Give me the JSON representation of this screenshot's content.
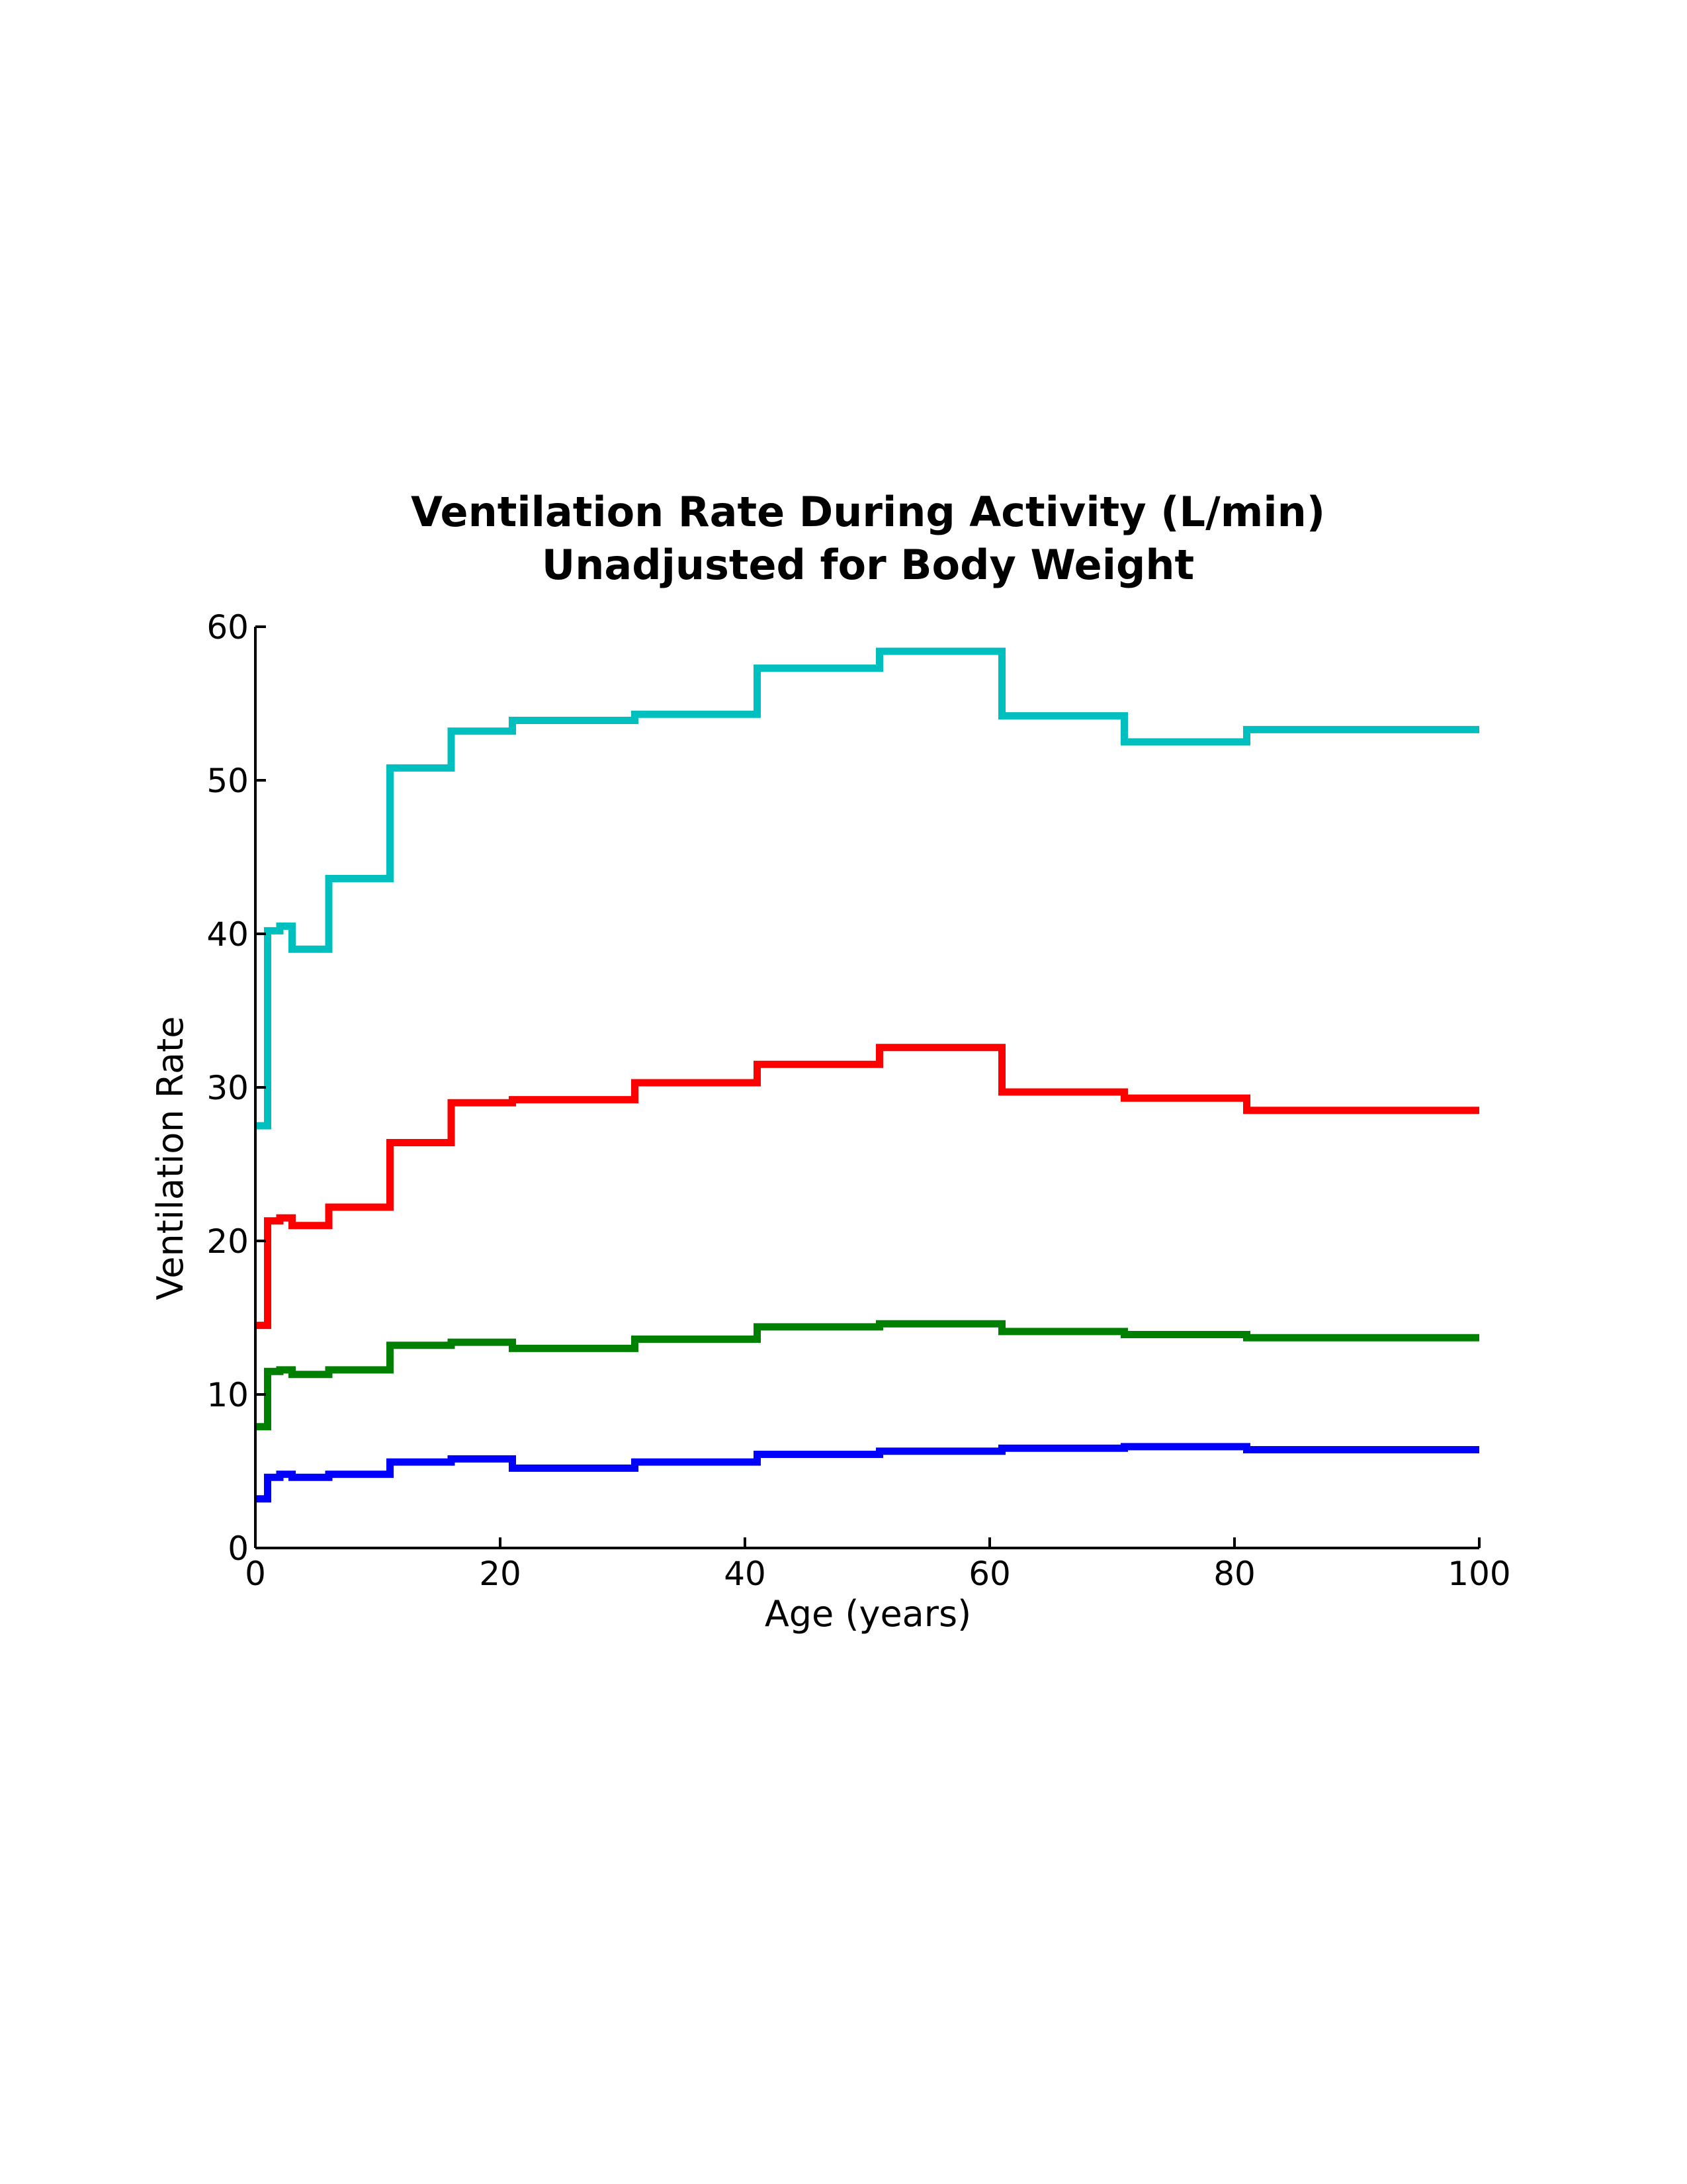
{
  "chart_data": {
    "type": "line",
    "step": true,
    "title": [
      "Ventilation Rate During Activity (L/min)",
      "Unadjusted for Body Weight"
    ],
    "xlabel": "Age (years)",
    "ylabel": "Ventilation Rate",
    "xlim": [
      0,
      100
    ],
    "ylim": [
      0,
      60
    ],
    "xticks": [
      0,
      20,
      40,
      60,
      80,
      100
    ],
    "yticks": [
      0,
      10,
      20,
      30,
      40,
      50,
      60
    ],
    "grid": false,
    "breakpoints": [
      0,
      1,
      2,
      3,
      6,
      11,
      16,
      21,
      31,
      41,
      51,
      61,
      71,
      81,
      100
    ],
    "series": [
      {
        "color": "#00bfbf",
        "values": [
          27.5,
          40.2,
          40.5,
          39.0,
          43.6,
          50.8,
          53.2,
          53.9,
          54.3,
          57.3,
          58.4,
          54.2,
          52.5,
          53.3
        ]
      },
      {
        "color": "#ff0000",
        "values": [
          14.5,
          21.3,
          21.5,
          21.0,
          22.2,
          26.4,
          29.0,
          29.2,
          30.3,
          31.5,
          32.6,
          29.7,
          29.3,
          28.5
        ]
      },
      {
        "color": "#008000",
        "values": [
          7.9,
          11.5,
          11.6,
          11.3,
          11.6,
          13.2,
          13.4,
          13.0,
          13.6,
          14.4,
          14.6,
          14.1,
          13.9,
          13.7
        ]
      },
      {
        "color": "#0000ff",
        "values": [
          3.2,
          4.6,
          4.8,
          4.6,
          4.8,
          5.6,
          5.8,
          5.2,
          5.6,
          6.1,
          6.3,
          6.5,
          6.6,
          6.4
        ]
      }
    ]
  }
}
